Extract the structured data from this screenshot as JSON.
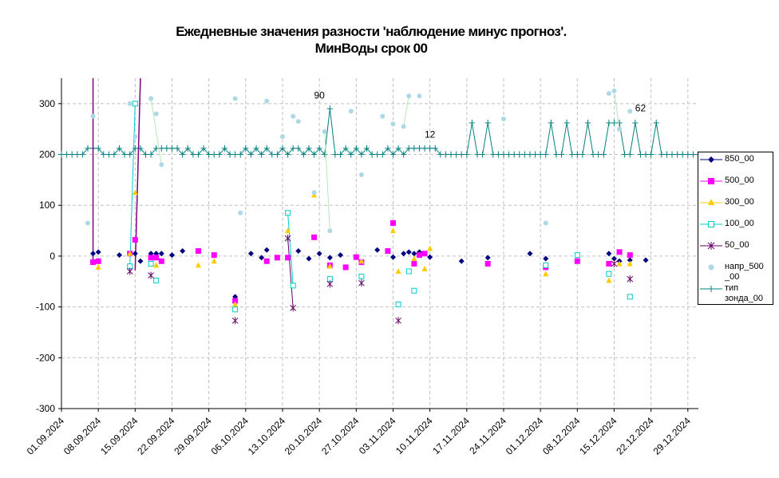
{
  "chart_data": {
    "type": "scatter",
    "title": "Ежедневные значения разности 'наблюдение минус прогноз'.",
    "subtitle": "МинВоды    срок 00",
    "ylim": [
      -300,
      350
    ],
    "yticks": [
      -300,
      -200,
      -100,
      0,
      100,
      200,
      300
    ],
    "x_dates": [
      "01.09.2024",
      "08.09.2024",
      "15.09.2024",
      "22.09.2024",
      "29.09.2024",
      "06.10.2024",
      "13.10.2024",
      "20.10.2024",
      "27.10.2024",
      "03.11.2024",
      "10.11.2024",
      "17.11.2024",
      "24.11.2024",
      "01.12.2024",
      "08.12.2024",
      "15.12.2024",
      "22.12.2024",
      "29.12.2024"
    ],
    "xlim": [
      "01.09.2024",
      "31.12.2024"
    ],
    "grid": true,
    "legend_position": "right",
    "annotations": [
      {
        "text": "90",
        "x": "20.10.2024",
        "y": 310
      },
      {
        "text": "12",
        "x": "10.11.2024",
        "y": 233
      },
      {
        "text": "62",
        "x": "20.12.2024",
        "y": 285
      }
    ],
    "series": [
      {
        "name": "850_00",
        "color": "#000080",
        "marker": "diamond",
        "connect": false,
        "points": [
          [
            "07.09.2024",
            5
          ],
          [
            "08.09.2024",
            8
          ],
          [
            "12.09.2024",
            2
          ],
          [
            "15.09.2024",
            5
          ],
          [
            "16.09.2024",
            -10
          ],
          [
            "18.09.2024",
            5
          ],
          [
            "19.09.2024",
            5
          ],
          [
            "20.09.2024",
            5
          ],
          [
            "22.09.2024",
            2
          ],
          [
            "24.09.2024",
            10
          ],
          [
            "04.10.2024",
            -80
          ],
          [
            "07.10.2024",
            5
          ],
          [
            "09.10.2024",
            -3
          ],
          [
            "10.10.2024",
            12
          ],
          [
            "16.10.2024",
            10
          ],
          [
            "18.10.2024",
            -5
          ],
          [
            "20.10.2024",
            5
          ],
          [
            "22.10.2024",
            -3
          ],
          [
            "24.10.2024",
            2
          ],
          [
            "31.10.2024",
            12
          ],
          [
            "03.11.2024",
            -2
          ],
          [
            "05.11.2024",
            5
          ],
          [
            "06.11.2024",
            8
          ],
          [
            "07.11.2024",
            5
          ],
          [
            "08.11.2024",
            8
          ],
          [
            "09.11.2024",
            5
          ],
          [
            "10.11.2024",
            -2
          ],
          [
            "16.11.2024",
            -10
          ],
          [
            "21.11.2024",
            -3
          ],
          [
            "29.11.2024",
            5
          ],
          [
            "02.12.2024",
            -5
          ],
          [
            "08.12.2024",
            -10
          ],
          [
            "14.12.2024",
            5
          ],
          [
            "15.12.2024",
            -5
          ],
          [
            "16.12.2024",
            -10
          ],
          [
            "18.12.2024",
            -8
          ],
          [
            "21.12.2024",
            -8
          ]
        ]
      },
      {
        "name": "500_00",
        "color": "#ff00ff",
        "marker": "square",
        "connect": false,
        "points": [
          [
            "07.09.2024",
            -12
          ],
          [
            "08.09.2024",
            -10
          ],
          [
            "14.09.2024",
            5
          ],
          [
            "15.09.2024",
            32
          ],
          [
            "18.09.2024",
            -3
          ],
          [
            "19.09.2024",
            -3
          ],
          [
            "20.09.2024",
            -10
          ],
          [
            "27.09.2024",
            10
          ],
          [
            "30.09.2024",
            2
          ],
          [
            "04.10.2024",
            -88
          ],
          [
            "10.10.2024",
            -10
          ],
          [
            "12.10.2024",
            -3
          ],
          [
            "14.10.2024",
            -3
          ],
          [
            "19.10.2024",
            37
          ],
          [
            "22.10.2024",
            -18
          ],
          [
            "25.10.2024",
            -22
          ],
          [
            "27.10.2024",
            -2
          ],
          [
            "28.10.2024",
            -12
          ],
          [
            "02.11.2024",
            10
          ],
          [
            "03.11.2024",
            65
          ],
          [
            "07.11.2024",
            -15
          ],
          [
            "08.11.2024",
            2
          ],
          [
            "09.11.2024",
            5
          ],
          [
            "21.11.2024",
            -15
          ],
          [
            "02.12.2024",
            -22
          ],
          [
            "08.12.2024",
            -10
          ],
          [
            "14.12.2024",
            -15
          ],
          [
            "16.12.2024",
            8
          ],
          [
            "18.12.2024",
            2
          ]
        ]
      },
      {
        "name": "300_00",
        "color": "#ffcc00",
        "marker": "triangle",
        "connect": false,
        "points": [
          [
            "08.09.2024",
            -22
          ],
          [
            "14.09.2024",
            5
          ],
          [
            "15.09.2024",
            125
          ],
          [
            "19.09.2024",
            -18
          ],
          [
            "27.09.2024",
            -18
          ],
          [
            "30.09.2024",
            -10
          ],
          [
            "04.10.2024",
            -95
          ],
          [
            "14.10.2024",
            50
          ],
          [
            "19.10.2024",
            120
          ],
          [
            "22.10.2024",
            -20
          ],
          [
            "28.10.2024",
            -10
          ],
          [
            "03.11.2024",
            50
          ],
          [
            "04.11.2024",
            -30
          ],
          [
            "07.11.2024",
            -5
          ],
          [
            "09.11.2024",
            -25
          ],
          [
            "10.11.2024",
            15
          ],
          [
            "02.12.2024",
            -35
          ],
          [
            "14.12.2024",
            -48
          ],
          [
            "16.12.2024",
            -15
          ],
          [
            "18.12.2024",
            -15
          ]
        ]
      },
      {
        "name": "100_00",
        "color": "#00cccc",
        "marker": "square-open",
        "connect": false,
        "points": [
          [
            "14.09.2024",
            -20
          ],
          [
            "15.09.2024",
            300
          ],
          [
            "18.09.2024",
            -15
          ],
          [
            "19.09.2024",
            -48
          ],
          [
            "04.10.2024",
            -105
          ],
          [
            "14.10.2024",
            85
          ],
          [
            "15.10.2024",
            -58
          ],
          [
            "22.10.2024",
            -45
          ],
          [
            "28.10.2024",
            -40
          ],
          [
            "04.11.2024",
            -95
          ],
          [
            "06.11.2024",
            -30
          ],
          [
            "07.11.2024",
            -68
          ],
          [
            "02.12.2024",
            -18
          ],
          [
            "08.12.2024",
            2
          ],
          [
            "14.12.2024",
            -35
          ],
          [
            "18.12.2024",
            -80
          ]
        ]
      },
      {
        "name": "50_00",
        "color": "#660066",
        "marker": "star",
        "connect": false,
        "points": [
          [
            "14.09.2024",
            -30
          ],
          [
            "18.09.2024",
            -38
          ],
          [
            "04.10.2024",
            -127
          ],
          [
            "14.10.2024",
            35
          ],
          [
            "15.10.2024",
            -102
          ],
          [
            "22.10.2024",
            -55
          ],
          [
            "28.10.2024",
            -53
          ],
          [
            "04.11.2024",
            -127
          ],
          [
            "15.12.2024",
            -15
          ],
          [
            "18.12.2024",
            -45
          ]
        ]
      },
      {
        "name": "напр_500_00",
        "color": "#add8e6",
        "marker": "circle",
        "connect": false,
        "points": [
          [
            "06.09.2024",
            65
          ],
          [
            "07.09.2024",
            275
          ],
          [
            "14.09.2024",
            300
          ],
          [
            "15.09.2024",
            235
          ],
          [
            "18.09.2024",
            310
          ],
          [
            "19.09.2024",
            280
          ],
          [
            "20.09.2024",
            180
          ],
          [
            "05.10.2024",
            85
          ],
          [
            "04.10.2024",
            310
          ],
          [
            "10.10.2024",
            305
          ],
          [
            "13.10.2024",
            235
          ],
          [
            "15.10.2024",
            275
          ],
          [
            "16.10.2024",
            265
          ],
          [
            "19.10.2024",
            125
          ],
          [
            "21.10.2024",
            245
          ],
          [
            "22.10.2024",
            50
          ],
          [
            "26.10.2024",
            285
          ],
          [
            "28.10.2024",
            160
          ],
          [
            "01.11.2024",
            275
          ],
          [
            "03.11.2024",
            260
          ],
          [
            "05.11.2024",
            255
          ],
          [
            "06.11.2024",
            315
          ],
          [
            "08.11.2024",
            315
          ],
          [
            "24.11.2024",
            270
          ],
          [
            "02.12.2024",
            65
          ],
          [
            "14.12.2024",
            320
          ],
          [
            "15.12.2024",
            325
          ],
          [
            "16.12.2024",
            250
          ],
          [
            "18.12.2024",
            285
          ]
        ]
      },
      {
        "name": "тип зонда_00",
        "color": "#008080",
        "marker": "plus",
        "connect": true,
        "base": 200,
        "peaks": [
          [
            "06.09.2024",
            212
          ],
          [
            "07.09.2024",
            212
          ],
          [
            "08.09.2024",
            212
          ],
          [
            "12.09.2024",
            212
          ],
          [
            "15.09.2024",
            212
          ],
          [
            "16.09.2024",
            212
          ],
          [
            "19.09.2024",
            212
          ],
          [
            "20.09.2024",
            212
          ],
          [
            "21.09.2024",
            212
          ],
          [
            "22.09.2024",
            212
          ],
          [
            "23.09.2024",
            212
          ],
          [
            "25.09.2024",
            212
          ],
          [
            "28.09.2024",
            212
          ],
          [
            "02.10.2024",
            212
          ],
          [
            "06.10.2024",
            212
          ],
          [
            "08.10.2024",
            212
          ],
          [
            "10.10.2024",
            212
          ],
          [
            "13.10.2024",
            212
          ],
          [
            "15.10.2024",
            212
          ],
          [
            "16.10.2024",
            212
          ],
          [
            "18.10.2024",
            212
          ],
          [
            "20.10.2024",
            212
          ],
          [
            "22.10.2024",
            290
          ],
          [
            "25.10.2024",
            212
          ],
          [
            "27.10.2024",
            212
          ],
          [
            "29.10.2024",
            212
          ],
          [
            "02.11.2024",
            212
          ],
          [
            "04.11.2024",
            212
          ],
          [
            "06.11.2024",
            212
          ],
          [
            "07.11.2024",
            212
          ],
          [
            "08.11.2024",
            212
          ],
          [
            "09.11.2024",
            212
          ],
          [
            "10.11.2024",
            212
          ],
          [
            "11.11.2024",
            212
          ],
          [
            "18.11.2024",
            262
          ],
          [
            "21.11.2024",
            262
          ],
          [
            "03.12.2024",
            262
          ],
          [
            "06.12.2024",
            262
          ],
          [
            "10.12.2024",
            262
          ],
          [
            "14.12.2024",
            262
          ],
          [
            "15.12.2024",
            262
          ],
          [
            "16.12.2024",
            262
          ],
          [
            "19.12.2024",
            262
          ],
          [
            "23.12.2024",
            262
          ]
        ]
      }
    ]
  },
  "legend": {
    "items": [
      {
        "label": "850_00"
      },
      {
        "label": "500_00"
      },
      {
        "label": "300_00"
      },
      {
        "label": "100_00"
      },
      {
        "label": "50_00"
      },
      {
        "label": "напр_500\n_00"
      },
      {
        "label": "тип\nзонда_00"
      }
    ]
  }
}
